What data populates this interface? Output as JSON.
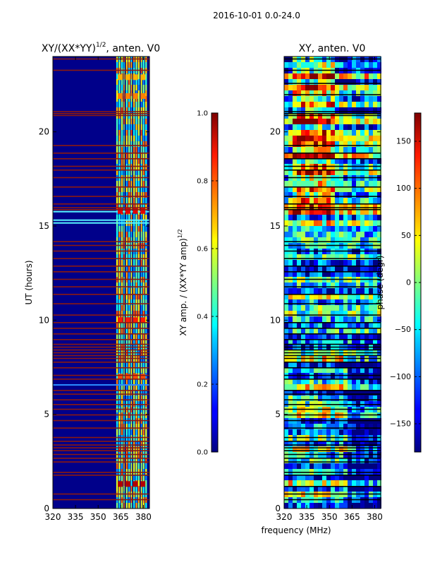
{
  "suptitle": "2016-10-01 0.0-24.0",
  "colors": {
    "background_hot": "#00007f",
    "flag_red": "#8c1a10",
    "flag_black": "#000000"
  },
  "chart_data": [
    {
      "type": "heatmap",
      "title_main": "XY/(XX*YY)",
      "title_sup": "1/2",
      "title_tail": ", anten. V0",
      "xlabel": "",
      "ylabel": "UT (hours)",
      "xlim": [
        320,
        384
      ],
      "ylim": [
        0,
        24
      ],
      "xticks": [
        320,
        335,
        350,
        365,
        380
      ],
      "yticks": [
        0,
        5,
        10,
        15,
        20
      ],
      "colorscale": "jet",
      "colorbar": {
        "label": "XY amp. / (XX*YY amp)",
        "label_sup": "1/2",
        "ticks": [
          "0.0",
          "0.2",
          "0.4",
          "0.6",
          "0.8",
          "1.0"
        ],
        "range": [
          0.0,
          1.0
        ]
      },
      "flagged_ut_hours": [
        0.5,
        0.8,
        1.8,
        1.95,
        2.5,
        2.7,
        2.9,
        3.1,
        3.25,
        3.4,
        3.6,
        3.8,
        4.3,
        4.7,
        5.0,
        5.3,
        5.55,
        5.8,
        6.1,
        6.3,
        6.9,
        7.1,
        7.5,
        7.8,
        8.0,
        8.15,
        8.3,
        8.45,
        8.6,
        8.75,
        9.0,
        9.3,
        9.6,
        9.9,
        10.3,
        10.9,
        11.4,
        11.8,
        12.2,
        12.6,
        12.9,
        13.3,
        13.7,
        14.0,
        14.2,
        15.9,
        16.0,
        16.2,
        16.6,
        17.1,
        17.6,
        18.0,
        18.2,
        18.6,
        18.9,
        19.3,
        20.9,
        21.0,
        21.1,
        23.3,
        23.9
      ]
    },
    {
      "type": "heatmap",
      "title_main": "XY, anten. V0",
      "xlabel": "frequency (MHz)",
      "ylabel": "",
      "xlim": [
        320,
        384
      ],
      "ylim": [
        0,
        24
      ],
      "xticks": [
        320,
        335,
        350,
        365,
        380
      ],
      "yticks": [
        0,
        5,
        10,
        15,
        20
      ],
      "colorscale": "jet",
      "colorbar": {
        "label": "phase (degr)",
        "ticks": [
          "150",
          "100",
          "50",
          "0",
          "−50",
          "−100",
          "−150"
        ],
        "range": [
          -180,
          180
        ]
      },
      "flagged_ut_hours": [
        0.5,
        0.8,
        1.2,
        1.8,
        1.95,
        2.5,
        2.7,
        2.9,
        3.1,
        3.25,
        3.4,
        3.6,
        3.8,
        4.3,
        4.7,
        5.0,
        5.3,
        5.55,
        5.8,
        6.1,
        6.3,
        6.9,
        7.1,
        7.5,
        7.8,
        8.0,
        8.15,
        8.3,
        8.45,
        8.6,
        8.75,
        9.0,
        9.3,
        9.6,
        9.9,
        10.3,
        10.9,
        11.4,
        11.8,
        12.2,
        12.6,
        12.9,
        13.3,
        13.7,
        14.0,
        14.2,
        15.9,
        16.0,
        16.2,
        16.6,
        17.1,
        17.6,
        18.0,
        18.2,
        18.6,
        18.9,
        19.3,
        20.9,
        21.0,
        21.1,
        22.0,
        22.6,
        23.3,
        23.9
      ]
    }
  ]
}
